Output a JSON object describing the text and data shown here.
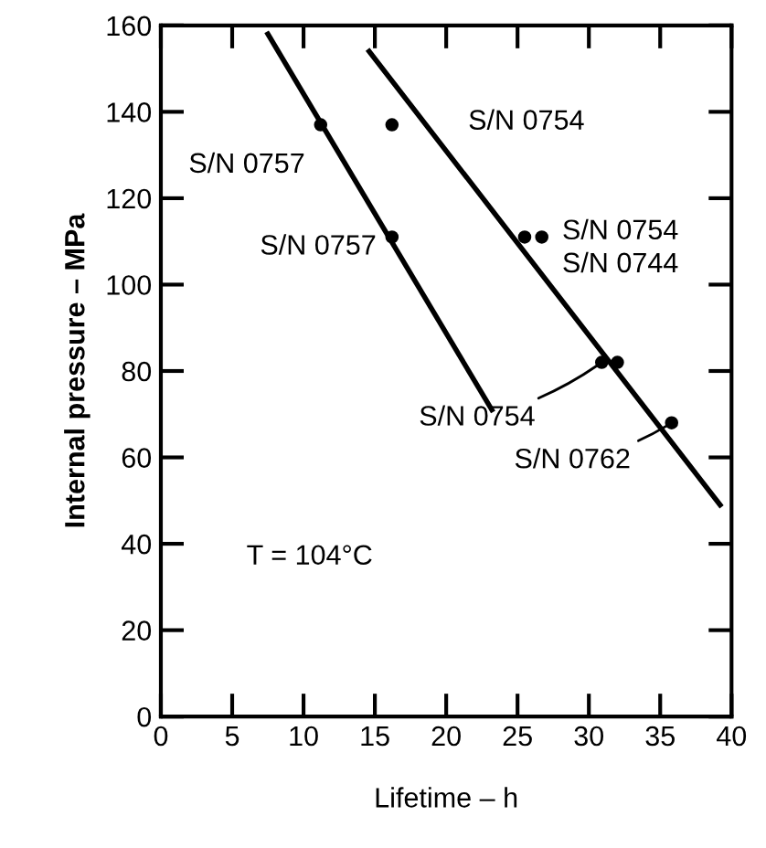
{
  "chart_data": {
    "type": "scatter",
    "xlabel": "Lifetime – h",
    "ylabel": "Internal pressure – MPa",
    "xlim": [
      0,
      40
    ],
    "xticks": [
      0,
      5,
      10,
      15,
      20,
      25,
      30,
      35,
      40
    ],
    "ylim": [
      0,
      160
    ],
    "yticks": [
      0,
      20,
      40,
      60,
      80,
      100,
      120,
      140,
      160
    ],
    "grid": false,
    "series": [
      {
        "marker": "circle",
        "color": "#000000",
        "x": [
          11.2,
          16.2,
          16.2,
          25.5,
          26.7,
          30.9,
          32.0,
          35.8
        ],
        "values": [
          137,
          137,
          111,
          111,
          111,
          82,
          82,
          68
        ]
      },
      {
        "type": "line",
        "color": "#000000",
        "x": [
          7.5,
          23.2
        ],
        "values": [
          158,
          71
        ]
      },
      {
        "type": "line",
        "color": "#000000",
        "x": [
          14.6,
          39.2
        ],
        "values": [
          154,
          49
        ]
      }
    ],
    "annotations": [
      {
        "text": "S/N 0757",
        "x": 11.2,
        "y": 137
      },
      {
        "text": "S/N 0754",
        "x": 16.2,
        "y": 137
      },
      {
        "text": "S/N 0757",
        "x": 16.2,
        "y": 111
      },
      {
        "text": "S/N 0754",
        "x": 26.7,
        "y": 111
      },
      {
        "text": "S/N 0744",
        "x": 26.7,
        "y": 111
      },
      {
        "text": "S/N 0754",
        "x": 30.9,
        "y": 82
      },
      {
        "text": "S/N 0762",
        "x": 35.8,
        "y": 68
      },
      "T = 104°C"
    ]
  }
}
